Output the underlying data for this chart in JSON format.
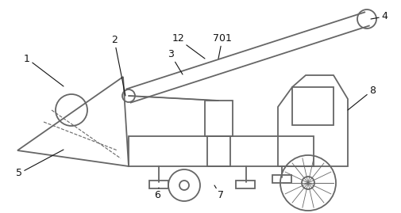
{
  "line_color": "#666666",
  "line_width": 1.3,
  "label_color": "#111111",
  "label_fontsize": 9,
  "fig_w": 5.05,
  "fig_h": 2.69,
  "dpi": 100
}
